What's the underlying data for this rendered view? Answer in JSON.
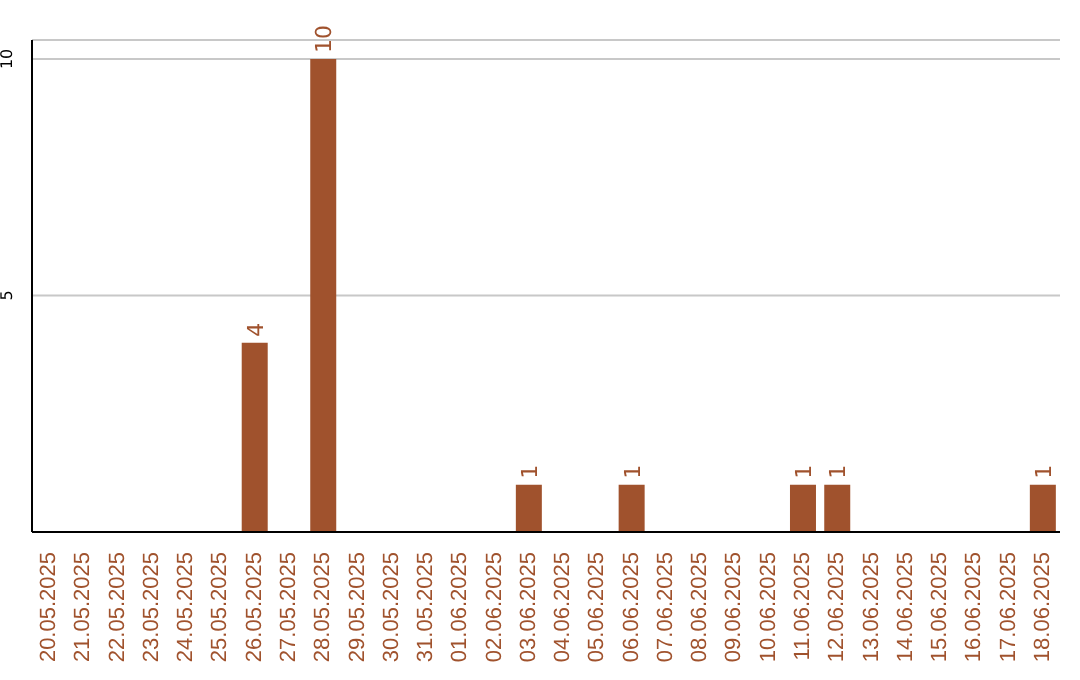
{
  "chart_data": {
    "type": "bar",
    "categories": [
      "20.05.2025",
      "21.05.2025",
      "22.05.2025",
      "23.05.2025",
      "24.05.2025",
      "25.05.2025",
      "26.05.2025",
      "27.05.2025",
      "28.05.2025",
      "29.05.2025",
      "30.05.2025",
      "31.05.2025",
      "01.06.2025",
      "02.06.2025",
      "03.06.2025",
      "04.06.2025",
      "05.06.2025",
      "06.06.2025",
      "07.06.2025",
      "08.06.2025",
      "09.06.2025",
      "10.06.2025",
      "11.06.2025",
      "12.06.2025",
      "13.06.2025",
      "14.06.2025",
      "15.06.2025",
      "16.06.2025",
      "17.06.2025",
      "18.06.2025"
    ],
    "values": [
      0,
      0,
      0,
      0,
      0,
      0,
      4,
      0,
      10,
      0,
      0,
      0,
      0,
      0,
      1,
      0,
      0,
      1,
      0,
      0,
      0,
      0,
      1,
      1,
      0,
      0,
      0,
      0,
      0,
      1
    ],
    "value_labels": [
      null,
      null,
      null,
      null,
      null,
      null,
      "4",
      null,
      "10",
      null,
      null,
      null,
      null,
      null,
      "1",
      null,
      null,
      "1",
      null,
      null,
      null,
      null,
      "1",
      "1",
      null,
      null,
      null,
      null,
      null,
      "1"
    ],
    "color": "#a0522d",
    "ylim": [
      0,
      10.4
    ],
    "yticks": [
      {
        "value": 0,
        "label": null
      },
      5,
      10
    ],
    "grid": "y"
  }
}
